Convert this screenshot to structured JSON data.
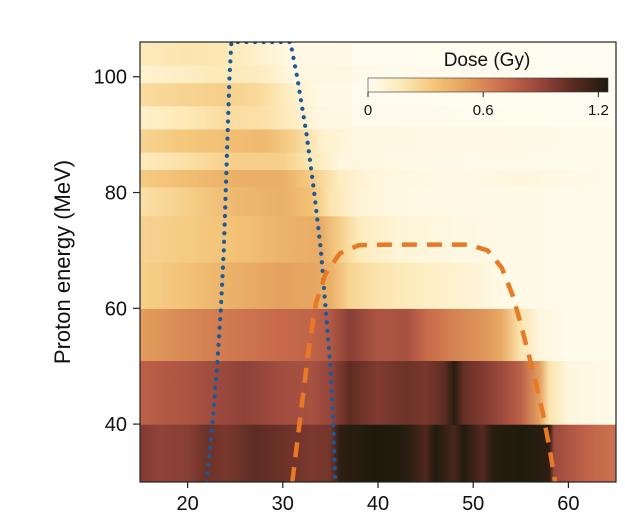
{
  "chart_data": {
    "type": "heatmap",
    "ylabel": "Proton energy (MeV)",
    "xlabel": "",
    "xlim": [
      15,
      65
    ],
    "ylim": [
      30,
      106
    ],
    "x_ticks": [
      20,
      30,
      40,
      50,
      60
    ],
    "y_ticks": [
      40,
      60,
      80,
      100
    ],
    "colorbar": {
      "title": "Dose (Gy)",
      "range": [
        0,
        1.25
      ],
      "ticks": [
        0,
        0.6,
        1.2
      ],
      "tick_labels": [
        "0",
        "0.6",
        "1.2"
      ],
      "colors": [
        "#fffdf2",
        "#fde9b6",
        "#f3c375",
        "#e0995a",
        "#c86a4c",
        "#99463c",
        "#5a2a20",
        "#1c1a0c"
      ],
      "placement": "top-right"
    },
    "bands": [
      {
        "y0": 30,
        "y1": 40,
        "keys": [
          [
            15,
            0.96
          ],
          [
            17,
            0.92
          ],
          [
            20,
            0.94
          ],
          [
            22,
            1.02
          ],
          [
            24,
            0.98
          ],
          [
            27,
            1.06
          ],
          [
            30,
            1.02
          ],
          [
            33,
            0.98
          ],
          [
            35,
            1.0
          ],
          [
            36,
            1.2
          ],
          [
            40,
            1.26
          ],
          [
            43,
            1.22
          ],
          [
            45,
            1.1
          ],
          [
            46,
            1.24
          ],
          [
            48,
            1.12
          ],
          [
            49,
            1.24
          ],
          [
            51,
            1.08
          ],
          [
            52,
            1.22
          ],
          [
            55,
            1.24
          ],
          [
            58,
            1.2
          ],
          [
            58.5,
            0.88
          ],
          [
            61,
            0.78
          ],
          [
            63,
            0.72
          ],
          [
            65,
            0.68
          ]
        ]
      },
      {
        "y0": 40,
        "y1": 51,
        "keys": [
          [
            15,
            0.76
          ],
          [
            18,
            0.8
          ],
          [
            20,
            0.82
          ],
          [
            22,
            0.86
          ],
          [
            26,
            0.92
          ],
          [
            30,
            0.86
          ],
          [
            33,
            0.84
          ],
          [
            35,
            0.9
          ],
          [
            37,
            1.06
          ],
          [
            40,
            0.96
          ],
          [
            43,
            1.02
          ],
          [
            45,
            0.98
          ],
          [
            47,
            1.06
          ],
          [
            48,
            1.22
          ],
          [
            49,
            1.04
          ],
          [
            51,
            0.96
          ],
          [
            53,
            0.88
          ],
          [
            55,
            0.76
          ],
          [
            57,
            0.5
          ],
          [
            58,
            0.2
          ],
          [
            60,
            0.06
          ],
          [
            65,
            0.03
          ]
        ]
      },
      {
        "y0": 51,
        "y1": 60,
        "keys": [
          [
            15,
            0.52
          ],
          [
            20,
            0.6
          ],
          [
            25,
            0.66
          ],
          [
            30,
            0.72
          ],
          [
            33,
            0.74
          ],
          [
            35,
            0.8
          ],
          [
            37,
            0.94
          ],
          [
            40,
            0.82
          ],
          [
            43,
            0.84
          ],
          [
            45,
            0.72
          ],
          [
            48,
            0.62
          ],
          [
            51,
            0.55
          ],
          [
            53,
            0.46
          ],
          [
            55,
            0.2
          ],
          [
            57,
            0.06
          ],
          [
            60,
            0.02
          ],
          [
            65,
            0.02
          ]
        ]
      },
      {
        "y0": 60,
        "y1": 68,
        "keys": [
          [
            15,
            0.3
          ],
          [
            20,
            0.36
          ],
          [
            25,
            0.44
          ],
          [
            30,
            0.5
          ],
          [
            33,
            0.48
          ],
          [
            35,
            0.44
          ],
          [
            37,
            0.28
          ],
          [
            40,
            0.2
          ],
          [
            43,
            0.16
          ],
          [
            47,
            0.12
          ],
          [
            50,
            0.08
          ],
          [
            53,
            0.04
          ],
          [
            60,
            0.02
          ],
          [
            65,
            0.02
          ]
        ]
      },
      {
        "y0": 68,
        "y1": 76,
        "keys": [
          [
            15,
            0.28
          ],
          [
            20,
            0.32
          ],
          [
            25,
            0.36
          ],
          [
            30,
            0.42
          ],
          [
            34,
            0.46
          ],
          [
            36,
            0.3
          ],
          [
            38,
            0.16
          ],
          [
            42,
            0.08
          ],
          [
            48,
            0.05
          ],
          [
            55,
            0.03
          ],
          [
            65,
            0.02
          ]
        ]
      },
      {
        "y0": 76,
        "y1": 81,
        "keys": [
          [
            15,
            0.22
          ],
          [
            20,
            0.3
          ],
          [
            25,
            0.4
          ],
          [
            30,
            0.44
          ],
          [
            33,
            0.36
          ],
          [
            35,
            0.2
          ],
          [
            38,
            0.08
          ],
          [
            45,
            0.04
          ],
          [
            65,
            0.02
          ]
        ]
      },
      {
        "y0": 81,
        "y1": 84,
        "keys": [
          [
            15,
            0.32
          ],
          [
            20,
            0.38
          ],
          [
            25,
            0.44
          ],
          [
            30,
            0.44
          ],
          [
            33,
            0.32
          ],
          [
            36,
            0.14
          ],
          [
            40,
            0.06
          ],
          [
            48,
            0.04
          ],
          [
            55,
            0.06
          ],
          [
            65,
            0.02
          ]
        ]
      },
      {
        "y0": 84,
        "y1": 87,
        "keys": [
          [
            15,
            0.16
          ],
          [
            20,
            0.22
          ],
          [
            25,
            0.3
          ],
          [
            30,
            0.3
          ],
          [
            33,
            0.18
          ],
          [
            36,
            0.06
          ],
          [
            45,
            0.03
          ],
          [
            65,
            0.02
          ]
        ]
      },
      {
        "y0": 87,
        "y1": 91,
        "keys": [
          [
            15,
            0.28
          ],
          [
            20,
            0.34
          ],
          [
            25,
            0.38
          ],
          [
            28,
            0.4
          ],
          [
            31,
            0.3
          ],
          [
            34,
            0.12
          ],
          [
            38,
            0.05
          ],
          [
            65,
            0.02
          ]
        ]
      },
      {
        "y0": 91,
        "y1": 95,
        "keys": [
          [
            15,
            0.12
          ],
          [
            20,
            0.18
          ],
          [
            24,
            0.24
          ],
          [
            28,
            0.22
          ],
          [
            31,
            0.14
          ],
          [
            34,
            0.05
          ],
          [
            65,
            0.02
          ]
        ]
      },
      {
        "y0": 95,
        "y1": 99,
        "keys": [
          [
            15,
            0.24
          ],
          [
            20,
            0.28
          ],
          [
            24,
            0.3
          ],
          [
            28,
            0.24
          ],
          [
            31,
            0.12
          ],
          [
            34,
            0.04
          ],
          [
            65,
            0.02
          ]
        ]
      },
      {
        "y0": 99,
        "y1": 102,
        "keys": [
          [
            15,
            0.1
          ],
          [
            20,
            0.14
          ],
          [
            24,
            0.18
          ],
          [
            28,
            0.14
          ],
          [
            31,
            0.06
          ],
          [
            65,
            0.02
          ]
        ]
      },
      {
        "y0": 102,
        "y1": 106,
        "keys": [
          [
            15,
            0.16
          ],
          [
            20,
            0.2
          ],
          [
            24,
            0.18
          ],
          [
            28,
            0.1
          ],
          [
            31,
            0.04
          ],
          [
            65,
            0.02
          ]
        ]
      }
    ],
    "overlays": [
      {
        "name": "blue-dotted-boundary",
        "style": "dotted",
        "color": "#1a5a9a",
        "points": [
          [
            22,
            30
          ],
          [
            22.6,
            40
          ],
          [
            23.1,
            50
          ],
          [
            23.5,
            60
          ],
          [
            23.8,
            70
          ],
          [
            24,
            80
          ],
          [
            24.2,
            90
          ],
          [
            24.4,
            100
          ],
          [
            24.6,
            106
          ],
          [
            30.8,
            106
          ],
          [
            31.5,
            100
          ],
          [
            32.5,
            90
          ],
          [
            33.3,
            80
          ],
          [
            34,
            70
          ],
          [
            34.5,
            60
          ],
          [
            35,
            50
          ],
          [
            35.3,
            40
          ],
          [
            35.5,
            30
          ]
        ]
      },
      {
        "name": "orange-dashed-boundary",
        "style": "dashed",
        "color": "#e87a26",
        "points": [
          [
            31,
            30
          ],
          [
            31.6,
            38
          ],
          [
            32.2,
            46
          ],
          [
            32.8,
            54
          ],
          [
            33.5,
            61
          ],
          [
            34.5,
            66
          ],
          [
            36,
            69.5
          ],
          [
            38,
            70.9
          ],
          [
            41,
            71
          ],
          [
            44,
            71
          ],
          [
            47,
            71
          ],
          [
            49.5,
            71
          ],
          [
            51.5,
            70
          ],
          [
            53,
            67
          ],
          [
            54.2,
            62
          ],
          [
            55.2,
            56
          ],
          [
            56.3,
            49
          ],
          [
            57.3,
            42
          ],
          [
            58,
            36
          ],
          [
            58.6,
            30
          ]
        ]
      }
    ]
  }
}
